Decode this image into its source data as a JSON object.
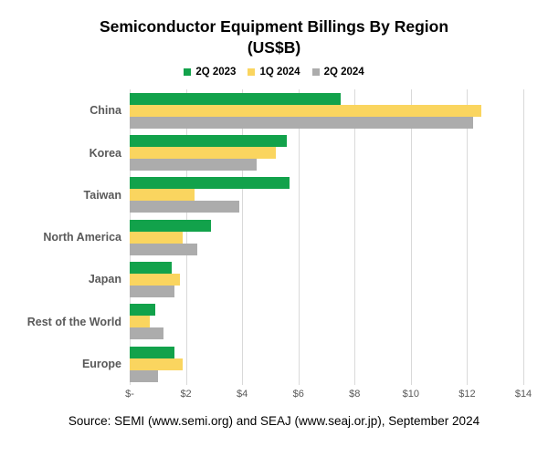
{
  "title": "Semiconductor Equipment Billings By Region",
  "subtitle": "(US$B)",
  "source": "Source: SEMI (www.semi.org) and SEAJ (www.seaj.or.jp), September 2024",
  "colors": {
    "grid": "#d9d9d9",
    "category_label": "#595959",
    "tick_label": "#595959"
  },
  "chart_data": {
    "type": "bar",
    "orientation": "horizontal",
    "title": "Semiconductor Equipment Billings By Region (US$B)",
    "categories": [
      "China",
      "Korea",
      "Taiwan",
      "North America",
      "Japan",
      "Rest of the World",
      "Europe"
    ],
    "series": [
      {
        "name": "2Q 2023",
        "color": "#12a24b",
        "values": [
          7.5,
          5.6,
          5.7,
          2.9,
          1.5,
          0.9,
          1.6
        ]
      },
      {
        "name": "1Q 2024",
        "color": "#fad55f",
        "values": [
          12.5,
          5.2,
          2.3,
          1.9,
          1.8,
          0.7,
          1.9
        ]
      },
      {
        "name": "2Q 2024",
        "color": "#acacac",
        "values": [
          12.2,
          4.5,
          3.9,
          2.4,
          1.6,
          1.2,
          1.0
        ]
      }
    ],
    "x_axis": {
      "ticks": [
        "$-",
        "$2",
        "$4",
        "$6",
        "$8",
        "$10",
        "$12",
        "$14"
      ],
      "min": 0,
      "max": 14,
      "tick_step": 2
    },
    "legend_position": "top",
    "grid": "vertical"
  }
}
